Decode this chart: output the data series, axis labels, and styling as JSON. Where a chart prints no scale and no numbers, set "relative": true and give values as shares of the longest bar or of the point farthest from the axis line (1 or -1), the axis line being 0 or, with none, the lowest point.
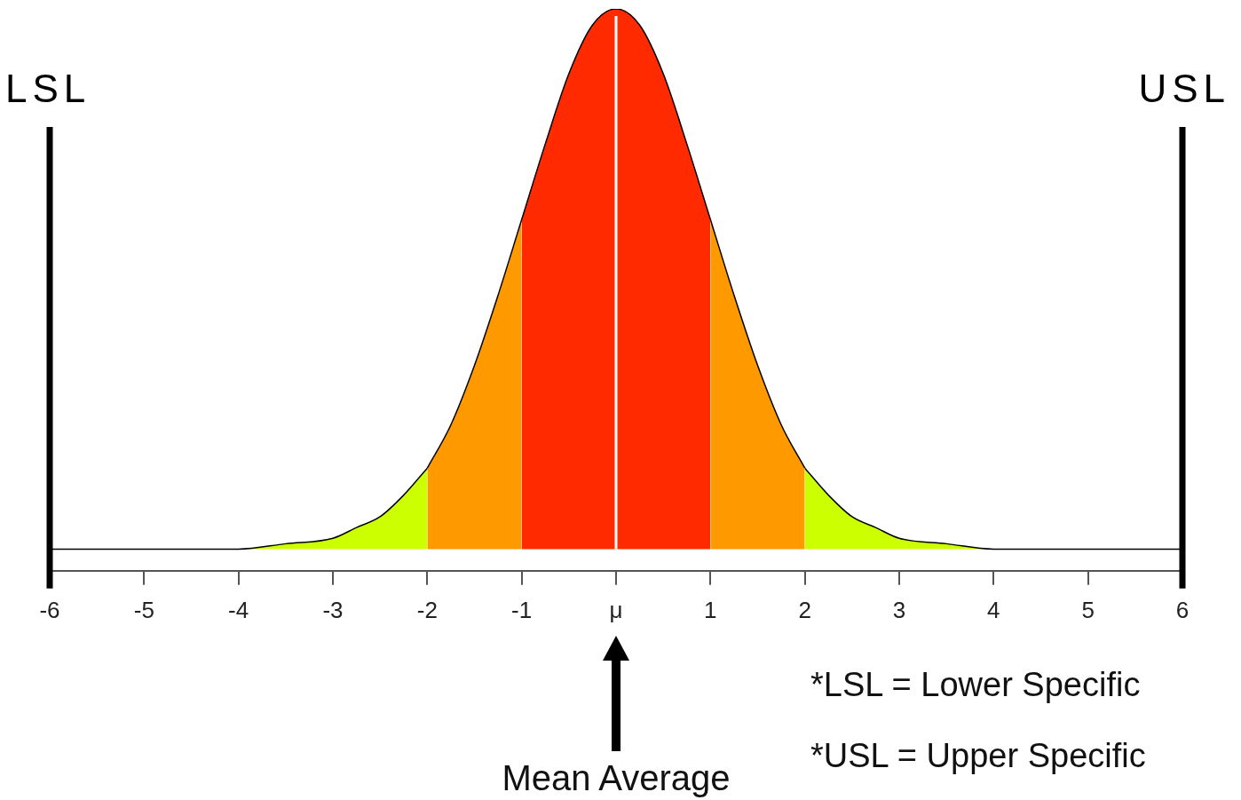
{
  "chart_data": {
    "type": "area",
    "relative": true,
    "xlim": [
      -6,
      6
    ],
    "xticks": [
      -6,
      -5,
      -4,
      -3,
      -2,
      -1,
      {
        "value": 0,
        "label": "μ"
      },
      1,
      2,
      3,
      4,
      5,
      6
    ],
    "series": [
      {
        "color": "#ccff00",
        "x": [
          -6,
          -4,
          -3.5,
          -3,
          -2.75,
          -2.5,
          -2.25,
          -2
        ],
        "values": [
          0,
          0,
          0.01,
          0.02,
          0.04,
          0.06,
          0.1,
          0.15
        ]
      },
      {
        "color": "#ff9900",
        "x": [
          -2,
          -1.75,
          -1.5,
          -1.25,
          -1
        ],
        "values": [
          0.15,
          0.23,
          0.34,
          0.47,
          0.61
        ]
      },
      {
        "color": "#ff2a00",
        "x": [
          -1,
          -0.75,
          -0.5,
          -0.25,
          0,
          0.25,
          0.5,
          0.75,
          1
        ],
        "values": [
          0.61,
          0.75,
          0.88,
          0.97,
          1,
          0.97,
          0.88,
          0.75,
          0.61
        ]
      },
      {
        "color": "#ff9900",
        "x": [
          1,
          1.25,
          1.5,
          1.75,
          2
        ],
        "values": [
          0.61,
          0.47,
          0.34,
          0.23,
          0.15
        ]
      },
      {
        "color": "#ccff00",
        "x": [
          2,
          2.25,
          2.5,
          2.75,
          3,
          3.5,
          4,
          6
        ],
        "values": [
          0.15,
          0.1,
          0.06,
          0.04,
          0.02,
          0.01,
          0,
          0
        ]
      }
    ],
    "ref_lines": [
      {
        "axis": "x",
        "value": -6,
        "label": "LSL",
        "color": "#000000"
      },
      {
        "axis": "x",
        "value": 6,
        "label": "USL",
        "color": "#000000"
      },
      {
        "axis": "x",
        "value": 0,
        "label": null,
        "color": "#ffffff"
      }
    ],
    "annotations": [
      "Mean Average",
      "*LSL = Lower Specific",
      "*USL = Upper Specific"
    ],
    "grid": false,
    "legend": false
  }
}
